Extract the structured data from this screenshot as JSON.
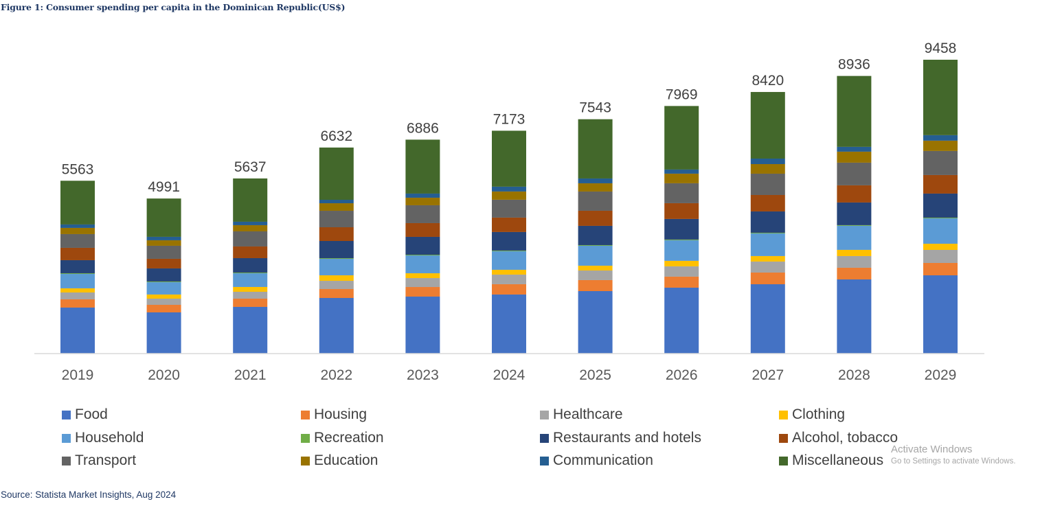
{
  "figure_title": "Figure 1: Consumer spending per capita in the Dominican Republic(US$)",
  "source": "Source: Statista Market Insights, Aug 2024",
  "watermark": {
    "line1": "Activate Windows",
    "line2": "Go to Settings to activate Windows."
  },
  "chart_data": {
    "type": "bar",
    "stacked": true,
    "title": "Figure 1: Consumer spending per capita in the Dominican Republic(US$)",
    "xlabel": "",
    "ylabel": "",
    "unit": "US$",
    "ylim": [
      0,
      9500
    ],
    "grid": false,
    "legend_position": "bottom",
    "categories": [
      "2019",
      "2020",
      "2021",
      "2022",
      "2023",
      "2024",
      "2025",
      "2026",
      "2027",
      "2028",
      "2029"
    ],
    "totals": [
      5563,
      4991,
      5637,
      6632,
      6886,
      7173,
      7543,
      7969,
      8420,
      8936,
      9458
    ],
    "series": [
      {
        "name": "Food",
        "color": "#4472c4",
        "values": [
          1481,
          1326,
          1503,
          1790,
          1834,
          1901,
          2011,
          2122,
          2232,
          2387,
          2519
        ]
      },
      {
        "name": "Housing",
        "color": "#ed7d31",
        "values": [
          265,
          243,
          265,
          287,
          309,
          332,
          354,
          354,
          376,
          376,
          398
        ]
      },
      {
        "name": "Healthcare",
        "color": "#a5a5a5",
        "values": [
          221,
          199,
          221,
          265,
          287,
          309,
          309,
          332,
          354,
          376,
          420
        ]
      },
      {
        "name": "Clothing",
        "color": "#ffc000",
        "values": [
          133,
          133,
          155,
          177,
          155,
          155,
          155,
          177,
          177,
          199,
          199
        ]
      },
      {
        "name": "Household",
        "color": "#5b9bd5",
        "values": [
          464,
          398,
          442,
          530,
          575,
          597,
          641,
          663,
          729,
          774,
          818
        ]
      },
      {
        "name": "Recreation",
        "color": "#70ad47",
        "values": [
          22,
          22,
          22,
          22,
          22,
          22,
          22,
          22,
          22,
          22,
          22
        ]
      },
      {
        "name": "Restaurants and hotels",
        "color": "#264478",
        "values": [
          420,
          420,
          464,
          553,
          575,
          597,
          619,
          663,
          685,
          729,
          774
        ]
      },
      {
        "name": "Alcohol, tobacco",
        "color": "#9e480e",
        "values": [
          398,
          309,
          376,
          442,
          442,
          464,
          486,
          508,
          530,
          553,
          597
        ]
      },
      {
        "name": "Transport",
        "color": "#636363",
        "values": [
          442,
          420,
          486,
          530,
          575,
          575,
          619,
          641,
          685,
          729,
          774
        ]
      },
      {
        "name": "Education",
        "color": "#997300",
        "values": [
          199,
          177,
          199,
          243,
          243,
          265,
          265,
          309,
          309,
          354,
          332
        ]
      },
      {
        "name": "Communication",
        "color": "#255e91",
        "values": [
          111,
          111,
          111,
          111,
          133,
          155,
          155,
          133,
          177,
          155,
          177
        ]
      },
      {
        "name": "Miscellaneous",
        "color": "#43682b",
        "values": [
          1407,
          1233,
          1393,
          1682,
          1736,
          1801,
          1907,
          2045,
          2144,
          2282,
          2428
        ]
      }
    ]
  }
}
